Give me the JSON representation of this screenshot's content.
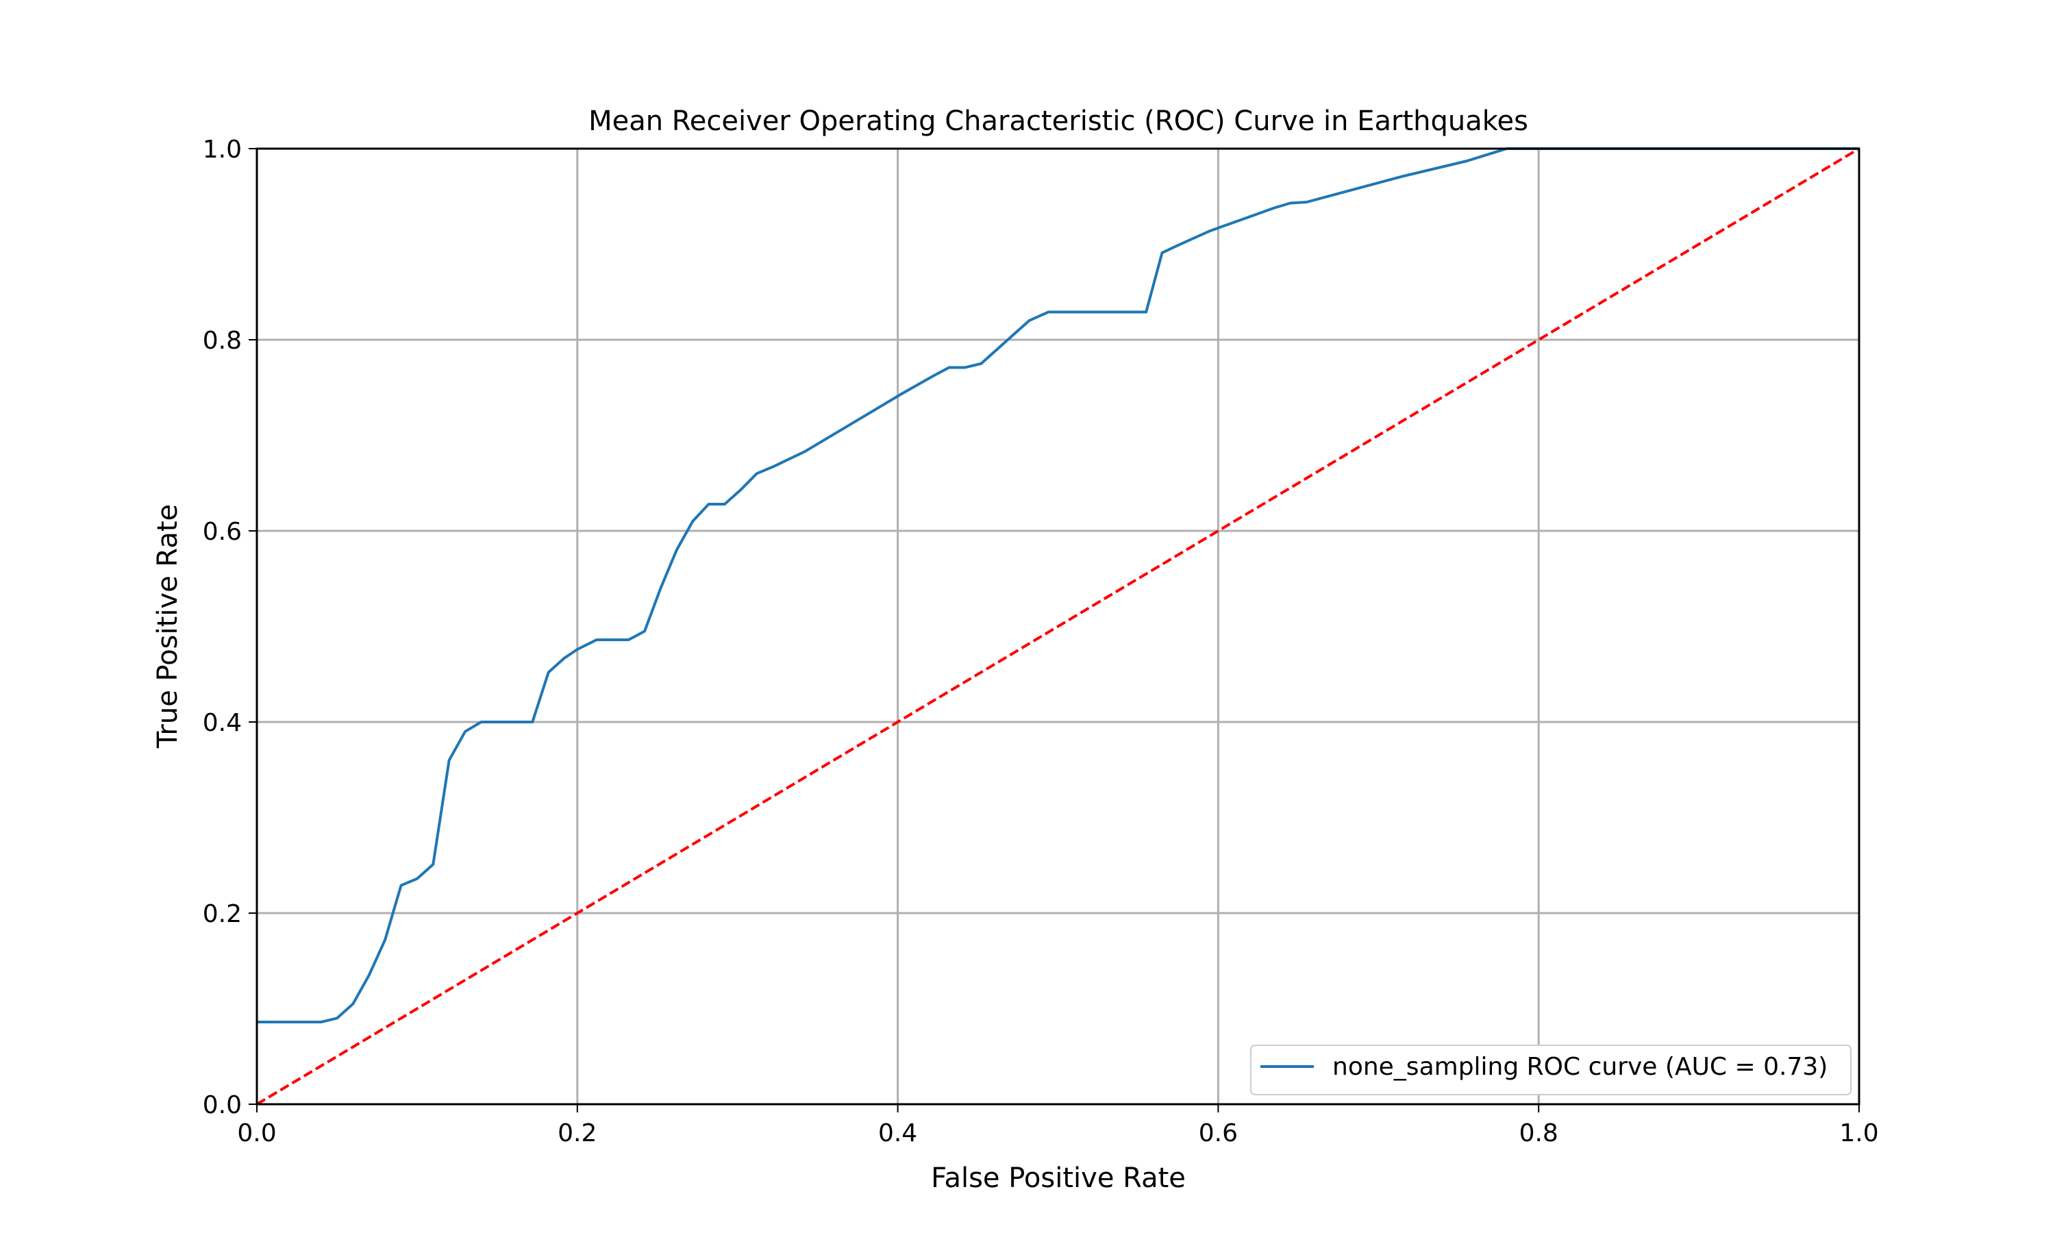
{
  "chart_data": {
    "type": "line",
    "title": "Mean Receiver Operating Characteristic (ROC) Curve in Earthquakes",
    "xlabel": "False Positive Rate",
    "ylabel": "True Positive Rate",
    "xlim": [
      0.0,
      1.0
    ],
    "ylim": [
      0.0,
      1.0
    ],
    "xticks": [
      "0.0",
      "0.2",
      "0.4",
      "0.6",
      "0.8",
      "1.0"
    ],
    "yticks": [
      "0.0",
      "0.2",
      "0.4",
      "0.6",
      "0.8",
      "1.0"
    ],
    "grid": true,
    "legend_position": "lower-right",
    "series": [
      {
        "name": "none_sampling ROC curve (AUC = 0.73)",
        "color": "#1f77b4",
        "style": "solid",
        "x": [
          0.0,
          0.04,
          0.05,
          0.06,
          0.07,
          0.08,
          0.09,
          0.1,
          0.11,
          0.12,
          0.13,
          0.14,
          0.15,
          0.172,
          0.182,
          0.192,
          0.2,
          0.212,
          0.232,
          0.242,
          0.252,
          0.262,
          0.272,
          0.282,
          0.292,
          0.302,
          0.312,
          0.322,
          0.342,
          0.362,
          0.382,
          0.402,
          0.422,
          0.432,
          0.442,
          0.452,
          0.462,
          0.472,
          0.482,
          0.494,
          0.555,
          0.565,
          0.575,
          0.595,
          0.615,
          0.635,
          0.645,
          0.655,
          0.675,
          0.715,
          0.755,
          0.78,
          0.8,
          0.85,
          0.9,
          1.0
        ],
        "y": [
          0.086,
          0.086,
          0.09,
          0.105,
          0.135,
          0.172,
          0.229,
          0.236,
          0.251,
          0.36,
          0.39,
          0.4,
          0.4,
          0.4,
          0.452,
          0.467,
          0.476,
          0.486,
          0.486,
          0.495,
          0.54,
          0.58,
          0.61,
          0.628,
          0.628,
          0.643,
          0.66,
          0.667,
          0.683,
          0.703,
          0.723,
          0.743,
          0.762,
          0.771,
          0.771,
          0.775,
          0.79,
          0.805,
          0.82,
          0.829,
          0.829,
          0.891,
          0.899,
          0.914,
          0.926,
          0.938,
          0.943,
          0.944,
          0.953,
          0.971,
          0.987,
          1.0,
          1.0,
          1.0,
          1.0,
          1.0
        ]
      },
      {
        "name": "",
        "color": "#ff0000",
        "style": "dashed",
        "x": [
          0.0,
          1.0
        ],
        "y": [
          0.0,
          1.0
        ]
      }
    ]
  }
}
